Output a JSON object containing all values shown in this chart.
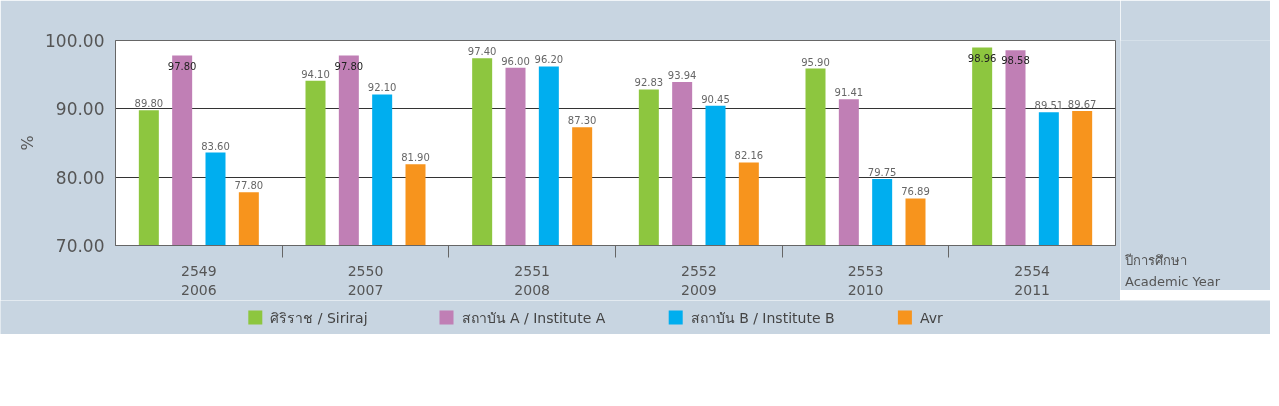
{
  "chart_data": {
    "type": "bar",
    "categories": [
      "2549\n2006",
      "2550\n2007",
      "2551\n2008",
      "2552\n2009",
      "2553\n2010",
      "2554\n2011"
    ],
    "series": [
      {
        "name": "ศิริราช / Siriraj",
        "color": "#8dc63f",
        "values": [
          89.8,
          94.1,
          97.4,
          92.83,
          95.9,
          98.96
        ],
        "value_labels": [
          "89.80",
          "94.10",
          "97.40",
          "92.83",
          "95.90",
          "98.96"
        ]
      },
      {
        "name": "สถาบัน A / Institute A",
        "color": "#c07fb5",
        "values": [
          97.8,
          97.8,
          96.0,
          93.94,
          91.41,
          98.58
        ],
        "value_labels": [
          "97.80",
          "97.80",
          "96.00",
          "93.94",
          "91.41",
          "98.58"
        ]
      },
      {
        "name": "สถาบัน B / Institute B",
        "color": "#00aeef",
        "values": [
          83.6,
          92.1,
          96.2,
          90.45,
          79.75,
          89.51
        ],
        "value_labels": [
          "83.60",
          "92.10",
          "96.20",
          "90.45",
          "79.75",
          "89.51"
        ]
      },
      {
        "name": "Avr",
        "color": "#f7941d",
        "values": [
          77.8,
          81.9,
          87.3,
          82.16,
          76.89,
          89.67
        ],
        "value_labels": [
          "77.80",
          "81.90",
          "87.30",
          "82.16",
          "76.89",
          "89.67"
        ]
      }
    ],
    "xlabel": "ปีการศึกษา\nAcademic Year",
    "ylabel": "%",
    "ylim": [
      70,
      100
    ],
    "yticks": [
      {
        "value": 70,
        "label": "70.00"
      },
      {
        "value": 80,
        "label": "80.00"
      },
      {
        "value": 90,
        "label": "90.00"
      },
      {
        "value": 100,
        "label": "100.00"
      }
    ],
    "grid": "y",
    "legend": "bottom"
  }
}
